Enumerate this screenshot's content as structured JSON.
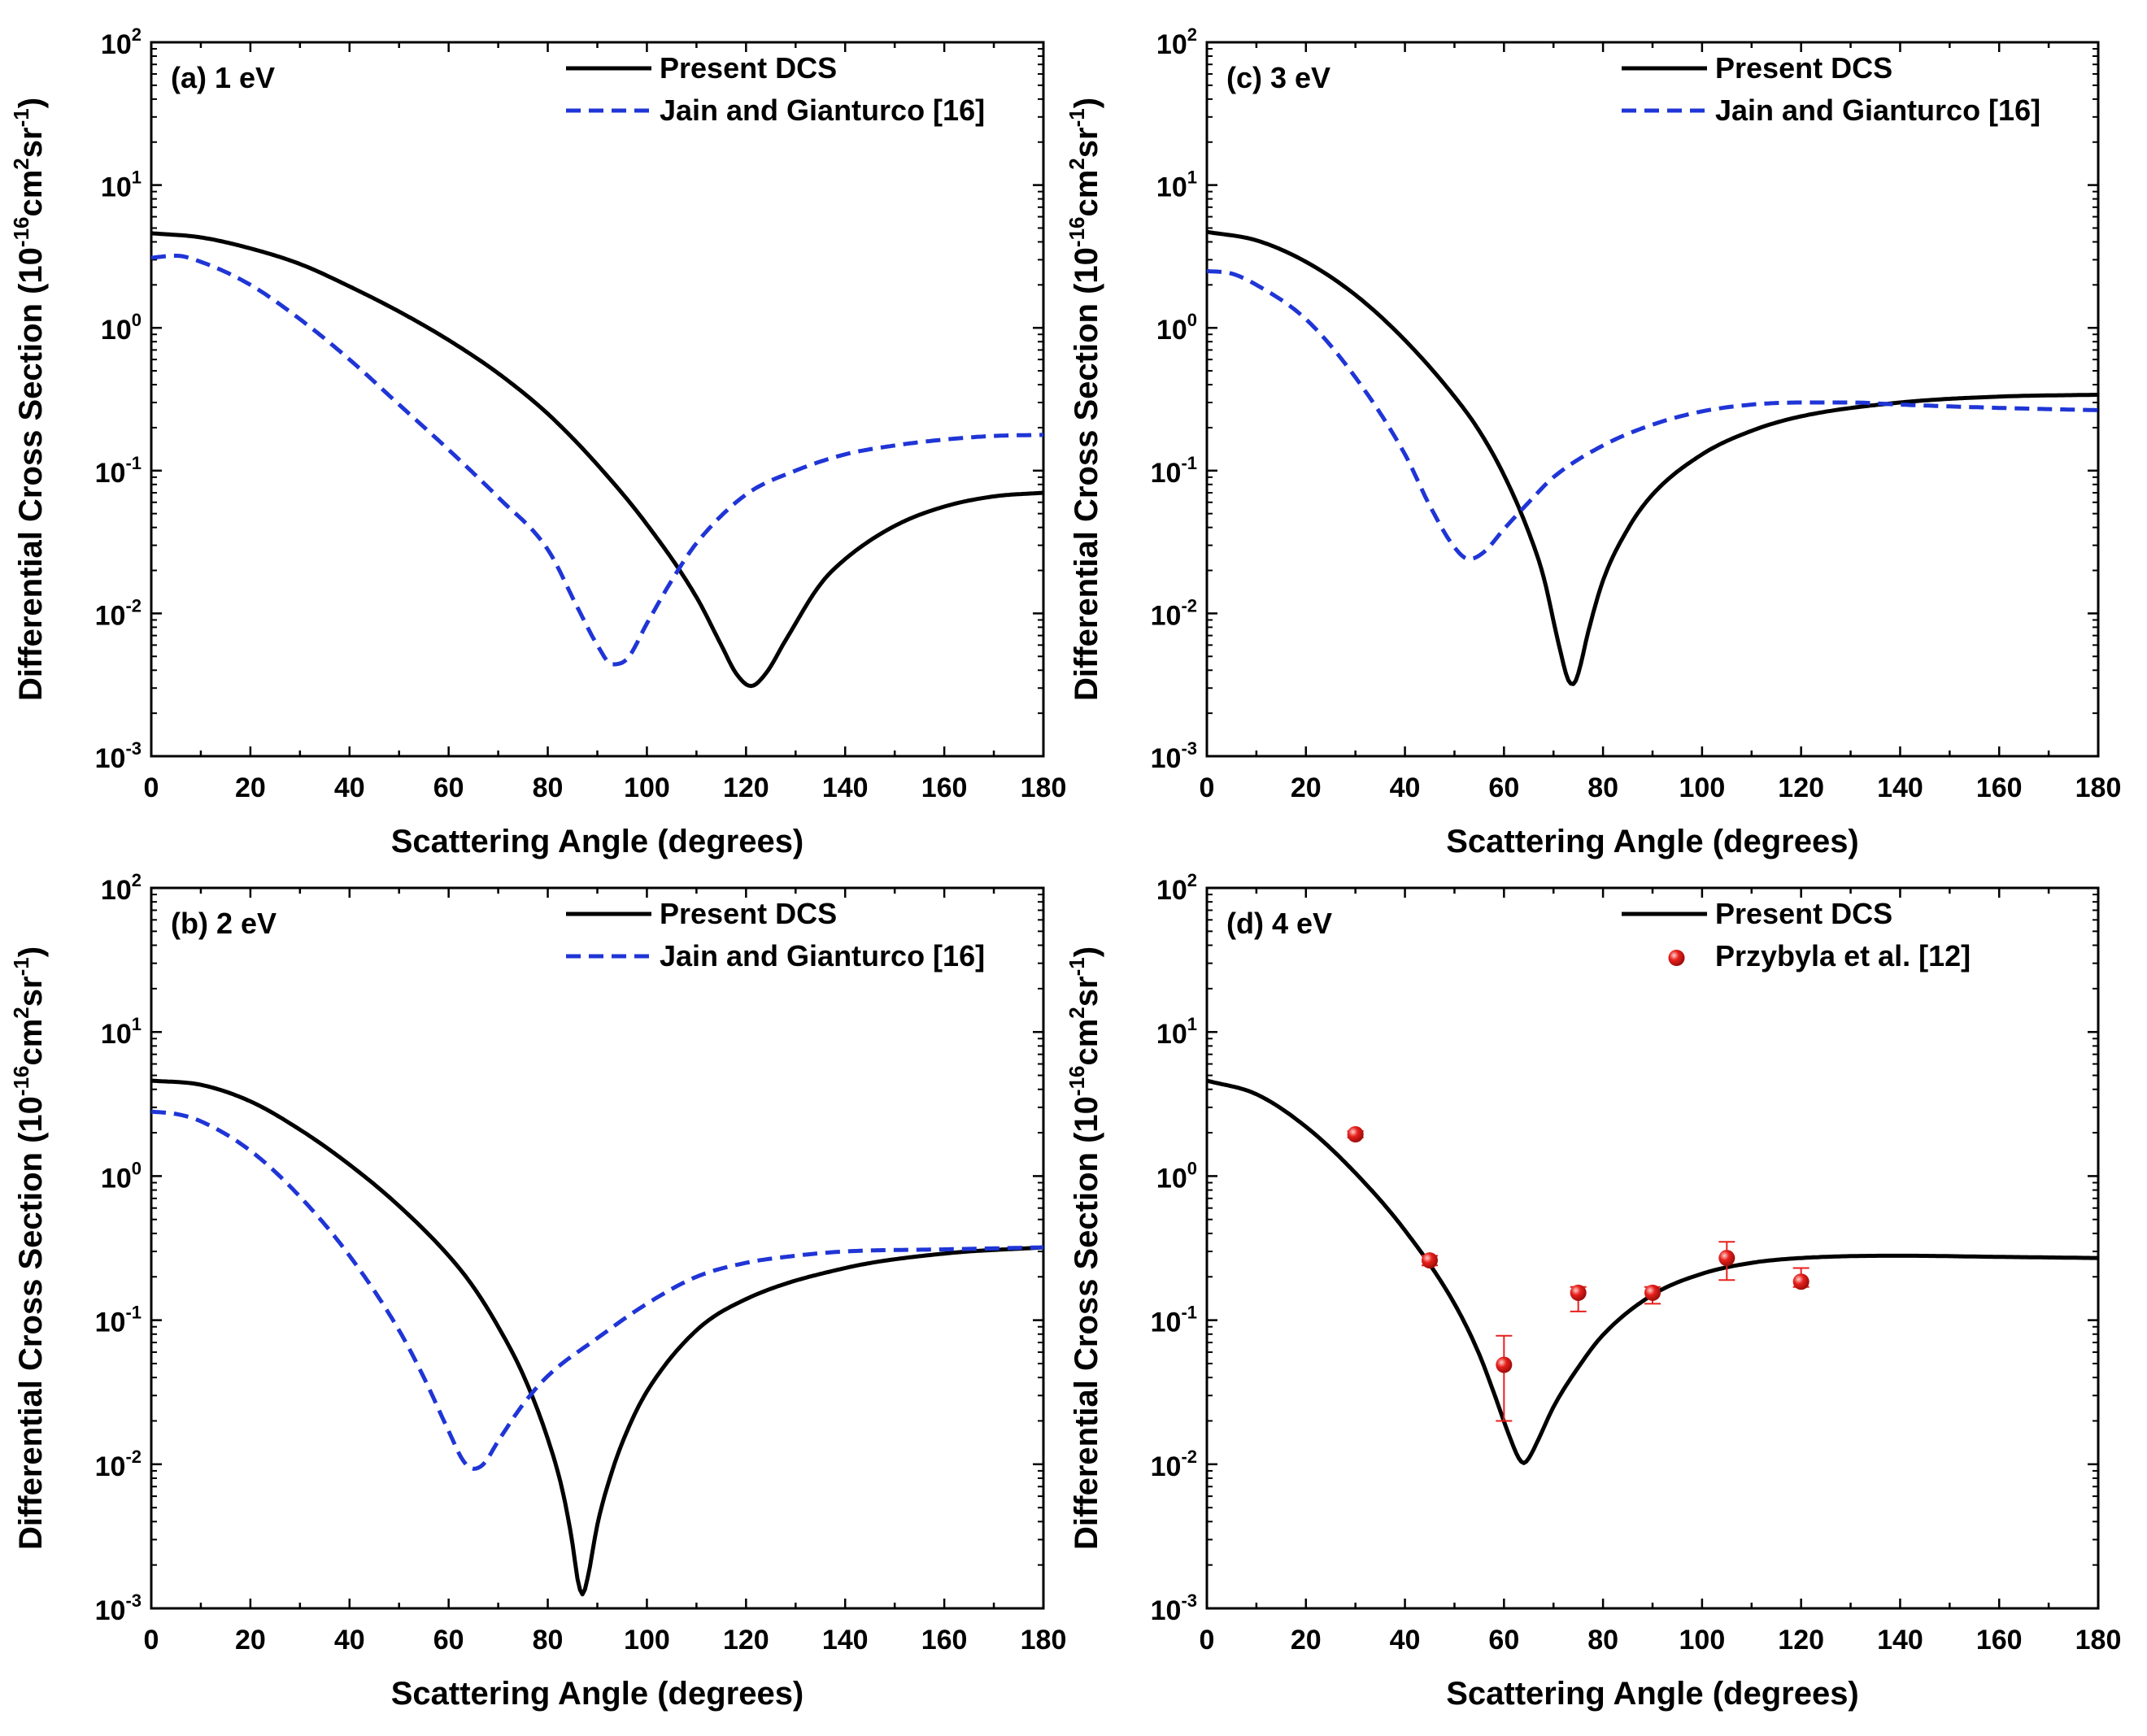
{
  "figure": {
    "domain": "Chart",
    "ylabel_main": "Differential Cross Section (10",
    "ylabel_exp1": "-16",
    "ylabel_mid": "cm",
    "ylabel_exp2": "2",
    "ylabel_mid2": "sr",
    "ylabel_exp3": "-1",
    "ylabel_end": ")",
    "colors": {
      "dcs": "#000000",
      "jain": "#1f35d6",
      "przybyla": "#e8201c",
      "axis": "#000000"
    }
  },
  "chart_data": [
    {
      "type": "line",
      "panel_label": "(a) 1 eV",
      "xlabel": "Scattering Angle (degrees)",
      "ylabel": "Differential Cross Section (10^-16 cm^2 sr^-1)",
      "xlim": [
        0,
        180
      ],
      "ylim_log10": [
        -3,
        2
      ],
      "x_ticks": [
        "0",
        "20",
        "40",
        "60",
        "80",
        "100",
        "120",
        "140",
        "160",
        "180"
      ],
      "y_ticks": [
        {
          "base": "10",
          "exp": "-3"
        },
        {
          "base": "10",
          "exp": "-2"
        },
        {
          "base": "10",
          "exp": "-1"
        },
        {
          "base": "10",
          "exp": "0"
        },
        {
          "base": "10",
          "exp": "1"
        },
        {
          "base": "10",
          "exp": "2"
        }
      ],
      "series": [
        {
          "name": "Present DCS",
          "style": "solid",
          "x": [
            0,
            10,
            20,
            30,
            40,
            50,
            60,
            70,
            80,
            90,
            100,
            110,
            115,
            118,
            121,
            124,
            128,
            135,
            140,
            150,
            160,
            170,
            180
          ],
          "y": [
            4.6,
            4.3,
            3.6,
            2.8,
            1.95,
            1.3,
            0.82,
            0.48,
            0.25,
            0.11,
            0.042,
            0.013,
            0.006,
            0.0038,
            0.0031,
            0.0038,
            0.0065,
            0.016,
            0.024,
            0.041,
            0.056,
            0.066,
            0.07
          ]
        },
        {
          "name": "Jain and Gianturco [16]",
          "style": "dashed",
          "x": [
            0,
            5,
            10,
            20,
            30,
            40,
            50,
            60,
            70,
            80,
            86,
            90,
            93,
            96,
            100,
            105,
            110,
            120,
            130,
            140,
            150,
            160,
            170,
            180
          ],
          "y": [
            3.1,
            3.2,
            2.9,
            2.0,
            1.15,
            0.6,
            0.29,
            0.14,
            0.065,
            0.028,
            0.011,
            0.006,
            0.0044,
            0.0048,
            0.0085,
            0.017,
            0.031,
            0.068,
            0.1,
            0.13,
            0.15,
            0.165,
            0.175,
            0.178
          ]
        }
      ]
    },
    {
      "type": "line",
      "panel_label": "(c) 3 eV",
      "xlabel": "Scattering Angle (degrees)",
      "ylabel": "Differential Cross Section (10^-16 cm^2 sr^-1)",
      "xlim": [
        0,
        180
      ],
      "ylim_log10": [
        -3,
        2
      ],
      "x_ticks": [
        "0",
        "20",
        "40",
        "60",
        "80",
        "100",
        "120",
        "140",
        "160",
        "180"
      ],
      "y_ticks": [
        {
          "base": "10",
          "exp": "-3"
        },
        {
          "base": "10",
          "exp": "-2"
        },
        {
          "base": "10",
          "exp": "-1"
        },
        {
          "base": "10",
          "exp": "0"
        },
        {
          "base": "10",
          "exp": "1"
        },
        {
          "base": "10",
          "exp": "2"
        }
      ],
      "series": [
        {
          "name": "Present DCS",
          "style": "solid",
          "x": [
            0,
            10,
            20,
            30,
            40,
            50,
            55,
            60,
            65,
            68,
            71,
            73,
            74,
            75,
            77,
            80,
            85,
            90,
            100,
            110,
            120,
            140,
            160,
            180
          ],
          "y": [
            4.7,
            4.1,
            2.9,
            1.7,
            0.82,
            0.33,
            0.19,
            0.093,
            0.037,
            0.018,
            0.0062,
            0.0034,
            0.0032,
            0.0038,
            0.0074,
            0.017,
            0.039,
            0.068,
            0.13,
            0.19,
            0.24,
            0.3,
            0.33,
            0.34
          ]
        },
        {
          "name": "Jain and Gianturco [16]",
          "style": "dashed",
          "x": [
            0,
            5,
            10,
            20,
            30,
            40,
            45,
            50,
            53,
            56,
            60,
            65,
            70,
            80,
            90,
            100,
            110,
            120,
            130,
            140,
            160,
            180
          ],
          "y": [
            2.5,
            2.4,
            2.0,
            1.15,
            0.45,
            0.13,
            0.057,
            0.029,
            0.024,
            0.027,
            0.039,
            0.06,
            0.09,
            0.15,
            0.21,
            0.26,
            0.29,
            0.3,
            0.3,
            0.29,
            0.275,
            0.265
          ]
        }
      ]
    },
    {
      "type": "line",
      "panel_label": "(b) 2 eV",
      "xlabel": "Scattering Angle (degrees)",
      "ylabel": "Differential Cross Section (10^-16 cm^2 sr^-1)",
      "xlim": [
        0,
        180
      ],
      "ylim_log10": [
        -3,
        2
      ],
      "x_ticks": [
        "0",
        "20",
        "40",
        "60",
        "80",
        "100",
        "120",
        "140",
        "160",
        "180"
      ],
      "y_ticks": [
        {
          "base": "10",
          "exp": "-3"
        },
        {
          "base": "10",
          "exp": "-2"
        },
        {
          "base": "10",
          "exp": "-1"
        },
        {
          "base": "10",
          "exp": "0"
        },
        {
          "base": "10",
          "exp": "1"
        },
        {
          "base": "10",
          "exp": "2"
        }
      ],
      "series": [
        {
          "name": "Present DCS",
          "style": "solid",
          "x": [
            0,
            10,
            20,
            30,
            40,
            50,
            60,
            65,
            70,
            75,
            80,
            83,
            85,
            86,
            87,
            88,
            90,
            93,
            96,
            100,
            110,
            120,
            140,
            160,
            180
          ],
          "y": [
            4.6,
            4.3,
            3.3,
            2.1,
            1.2,
            0.62,
            0.28,
            0.17,
            0.09,
            0.042,
            0.015,
            0.0065,
            0.0028,
            0.0016,
            0.00125,
            0.0016,
            0.0038,
            0.009,
            0.017,
            0.032,
            0.085,
            0.14,
            0.23,
            0.29,
            0.32
          ]
        },
        {
          "name": "Jain and Gianturco [16]",
          "style": "dashed",
          "x": [
            0,
            5,
            10,
            20,
            30,
            40,
            50,
            55,
            60,
            63,
            65,
            67,
            70,
            75,
            80,
            90,
            100,
            110,
            120,
            130,
            140,
            160,
            180
          ],
          "y": [
            2.8,
            2.7,
            2.4,
            1.5,
            0.72,
            0.28,
            0.085,
            0.04,
            0.017,
            0.0105,
            0.0093,
            0.01,
            0.0145,
            0.026,
            0.041,
            0.075,
            0.13,
            0.2,
            0.25,
            0.28,
            0.3,
            0.31,
            0.32
          ]
        }
      ]
    },
    {
      "type": "line",
      "panel_label": "(d) 4 eV",
      "xlabel": "Scattering Angle (degrees)",
      "ylabel": "Differential Cross Section (10^-16 cm^2 sr^-1)",
      "xlim": [
        0,
        180
      ],
      "ylim_log10": [
        -3,
        2
      ],
      "x_ticks": [
        "0",
        "20",
        "40",
        "60",
        "80",
        "100",
        "120",
        "140",
        "160",
        "180"
      ],
      "y_ticks": [
        {
          "base": "10",
          "exp": "-3"
        },
        {
          "base": "10",
          "exp": "-2"
        },
        {
          "base": "10",
          "exp": "-1"
        },
        {
          "base": "10",
          "exp": "0"
        },
        {
          "base": "10",
          "exp": "1"
        },
        {
          "base": "10",
          "exp": "2"
        }
      ],
      "series": [
        {
          "name": "Present DCS",
          "style": "solid",
          "x": [
            0,
            10,
            20,
            30,
            40,
            50,
            55,
            58,
            61,
            63,
            64,
            65,
            67,
            70,
            75,
            80,
            90,
            100,
            110,
            120,
            140,
            160,
            180
          ],
          "y": [
            4.6,
            3.7,
            2.2,
            1.05,
            0.42,
            0.13,
            0.058,
            0.031,
            0.016,
            0.011,
            0.0102,
            0.011,
            0.015,
            0.025,
            0.047,
            0.079,
            0.15,
            0.21,
            0.25,
            0.27,
            0.28,
            0.275,
            0.27
          ]
        },
        {
          "name": "Przybyla et al. [12]",
          "style": "points",
          "x": [
            30,
            45,
            60,
            75,
            90,
            105,
            120
          ],
          "y": [
            1.95,
            0.26,
            0.049,
            0.155,
            0.155,
            0.27,
            0.185
          ],
          "err_low": [
            1.85,
            0.24,
            0.02,
            0.115,
            0.13,
            0.19,
            0.17
          ],
          "err_high": [
            2.05,
            0.28,
            0.078,
            0.17,
            0.17,
            0.35,
            0.23
          ]
        }
      ]
    }
  ]
}
